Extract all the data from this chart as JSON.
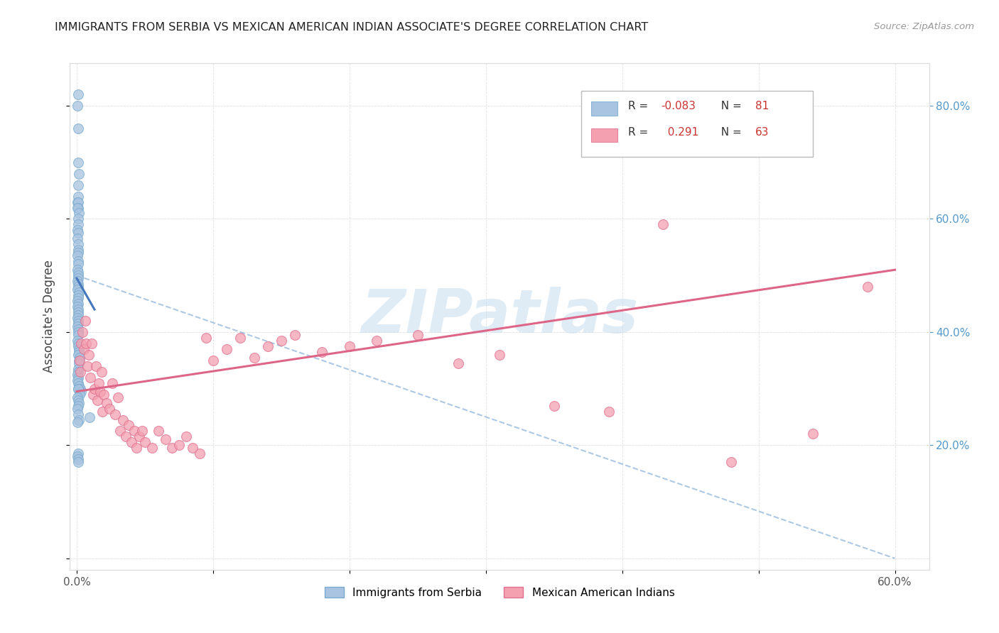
{
  "title": "IMMIGRANTS FROM SERBIA VS MEXICAN AMERICAN INDIAN ASSOCIATE'S DEGREE CORRELATION CHART",
  "source": "Source: ZipAtlas.com",
  "ylabel": "Associate's Degree",
  "xlim": [
    0.0,
    0.6
  ],
  "ylim": [
    0.0,
    0.85
  ],
  "r_serbia": -0.083,
  "n_serbia": 81,
  "r_mexican": 0.291,
  "n_mexican": 63,
  "serbia_color": "#a8c4e0",
  "serbia_edge_color": "#7aaacf",
  "mexican_color": "#f4a0b0",
  "mexican_edge_color": "#e07090",
  "serbia_line_color": "#4477bb",
  "mexican_line_color": "#dd6688",
  "dashed_line_color": "#99bbdd",
  "watermark_text": "ZIPatlas",
  "watermark_color": "#c5ddf0",
  "legend_r_color": "#cc3333",
  "legend_n_color": "#cc3333",
  "right_axis_color": "#5599cc",
  "serbia_x": [
    0.0008,
    0.0012,
    0.0006,
    0.001,
    0.0015,
    0.0008,
    0.001,
    0.0007,
    0.0009,
    0.0011,
    0.0006,
    0.0013,
    0.0008,
    0.001,
    0.0007,
    0.0009,
    0.0006,
    0.0008,
    0.0011,
    0.001,
    0.0007,
    0.0009,
    0.0008,
    0.0006,
    0.0012,
    0.001,
    0.0008,
    0.0007,
    0.0009,
    0.0011,
    0.0006,
    0.0013,
    0.0008,
    0.001,
    0.0007,
    0.0009,
    0.0006,
    0.0008,
    0.0011,
    0.001,
    0.0007,
    0.0009,
    0.0008,
    0.0006,
    0.0012,
    0.001,
    0.0008,
    0.0007,
    0.0009,
    0.0011,
    0.0015,
    0.0018,
    0.0012,
    0.002,
    0.0016,
    0.0014,
    0.001,
    0.0008,
    0.0007,
    0.0009,
    0.0006,
    0.0011,
    0.0013,
    0.0008,
    0.0025,
    0.003,
    0.0009,
    0.0022,
    0.0007,
    0.001,
    0.0016,
    0.0008,
    0.0007,
    0.0009,
    0.0095,
    0.0018,
    0.0007,
    0.0008,
    0.0006,
    0.001,
    0.0008
  ],
  "serbia_y": [
    0.82,
    0.76,
    0.8,
    0.7,
    0.68,
    0.66,
    0.64,
    0.63,
    0.63,
    0.62,
    0.62,
    0.61,
    0.6,
    0.59,
    0.58,
    0.575,
    0.565,
    0.555,
    0.545,
    0.54,
    0.535,
    0.525,
    0.52,
    0.51,
    0.505,
    0.5,
    0.495,
    0.49,
    0.485,
    0.48,
    0.475,
    0.47,
    0.465,
    0.46,
    0.455,
    0.45,
    0.445,
    0.44,
    0.435,
    0.43,
    0.425,
    0.42,
    0.415,
    0.41,
    0.405,
    0.4,
    0.395,
    0.385,
    0.38,
    0.375,
    0.37,
    0.365,
    0.36,
    0.355,
    0.35,
    0.345,
    0.335,
    0.33,
    0.325,
    0.32,
    0.315,
    0.31,
    0.305,
    0.3,
    0.3,
    0.295,
    0.3,
    0.29,
    0.285,
    0.28,
    0.275,
    0.27,
    0.265,
    0.255,
    0.25,
    0.245,
    0.24,
    0.185,
    0.18,
    0.175,
    0.17
  ],
  "mexican_x": [
    0.002,
    0.0025,
    0.003,
    0.004,
    0.005,
    0.006,
    0.007,
    0.008,
    0.009,
    0.01,
    0.011,
    0.012,
    0.013,
    0.014,
    0.015,
    0.016,
    0.017,
    0.018,
    0.019,
    0.02,
    0.022,
    0.024,
    0.026,
    0.028,
    0.03,
    0.032,
    0.034,
    0.036,
    0.038,
    0.04,
    0.042,
    0.044,
    0.046,
    0.048,
    0.05,
    0.055,
    0.06,
    0.065,
    0.07,
    0.075,
    0.08,
    0.085,
    0.09,
    0.095,
    0.1,
    0.11,
    0.12,
    0.13,
    0.14,
    0.15,
    0.16,
    0.18,
    0.2,
    0.22,
    0.25,
    0.28,
    0.31,
    0.35,
    0.39,
    0.43,
    0.48,
    0.54,
    0.58
  ],
  "mexican_y": [
    0.35,
    0.33,
    0.38,
    0.4,
    0.37,
    0.42,
    0.38,
    0.34,
    0.36,
    0.32,
    0.38,
    0.29,
    0.3,
    0.34,
    0.28,
    0.31,
    0.295,
    0.33,
    0.26,
    0.29,
    0.275,
    0.265,
    0.31,
    0.255,
    0.285,
    0.225,
    0.245,
    0.215,
    0.235,
    0.205,
    0.225,
    0.195,
    0.215,
    0.225,
    0.205,
    0.195,
    0.225,
    0.21,
    0.195,
    0.2,
    0.215,
    0.195,
    0.185,
    0.39,
    0.35,
    0.37,
    0.39,
    0.355,
    0.375,
    0.385,
    0.395,
    0.365,
    0.375,
    0.385,
    0.395,
    0.345,
    0.36,
    0.27,
    0.26,
    0.59,
    0.17,
    0.22,
    0.48
  ],
  "serbia_line_x": [
    0.0,
    0.013
  ],
  "serbia_line_y": [
    0.495,
    0.44
  ],
  "mexican_line_x": [
    0.0,
    0.6
  ],
  "mexican_line_y": [
    0.295,
    0.51
  ],
  "dashed_line_x": [
    0.0,
    0.6
  ],
  "dashed_line_y": [
    0.5,
    0.0
  ]
}
